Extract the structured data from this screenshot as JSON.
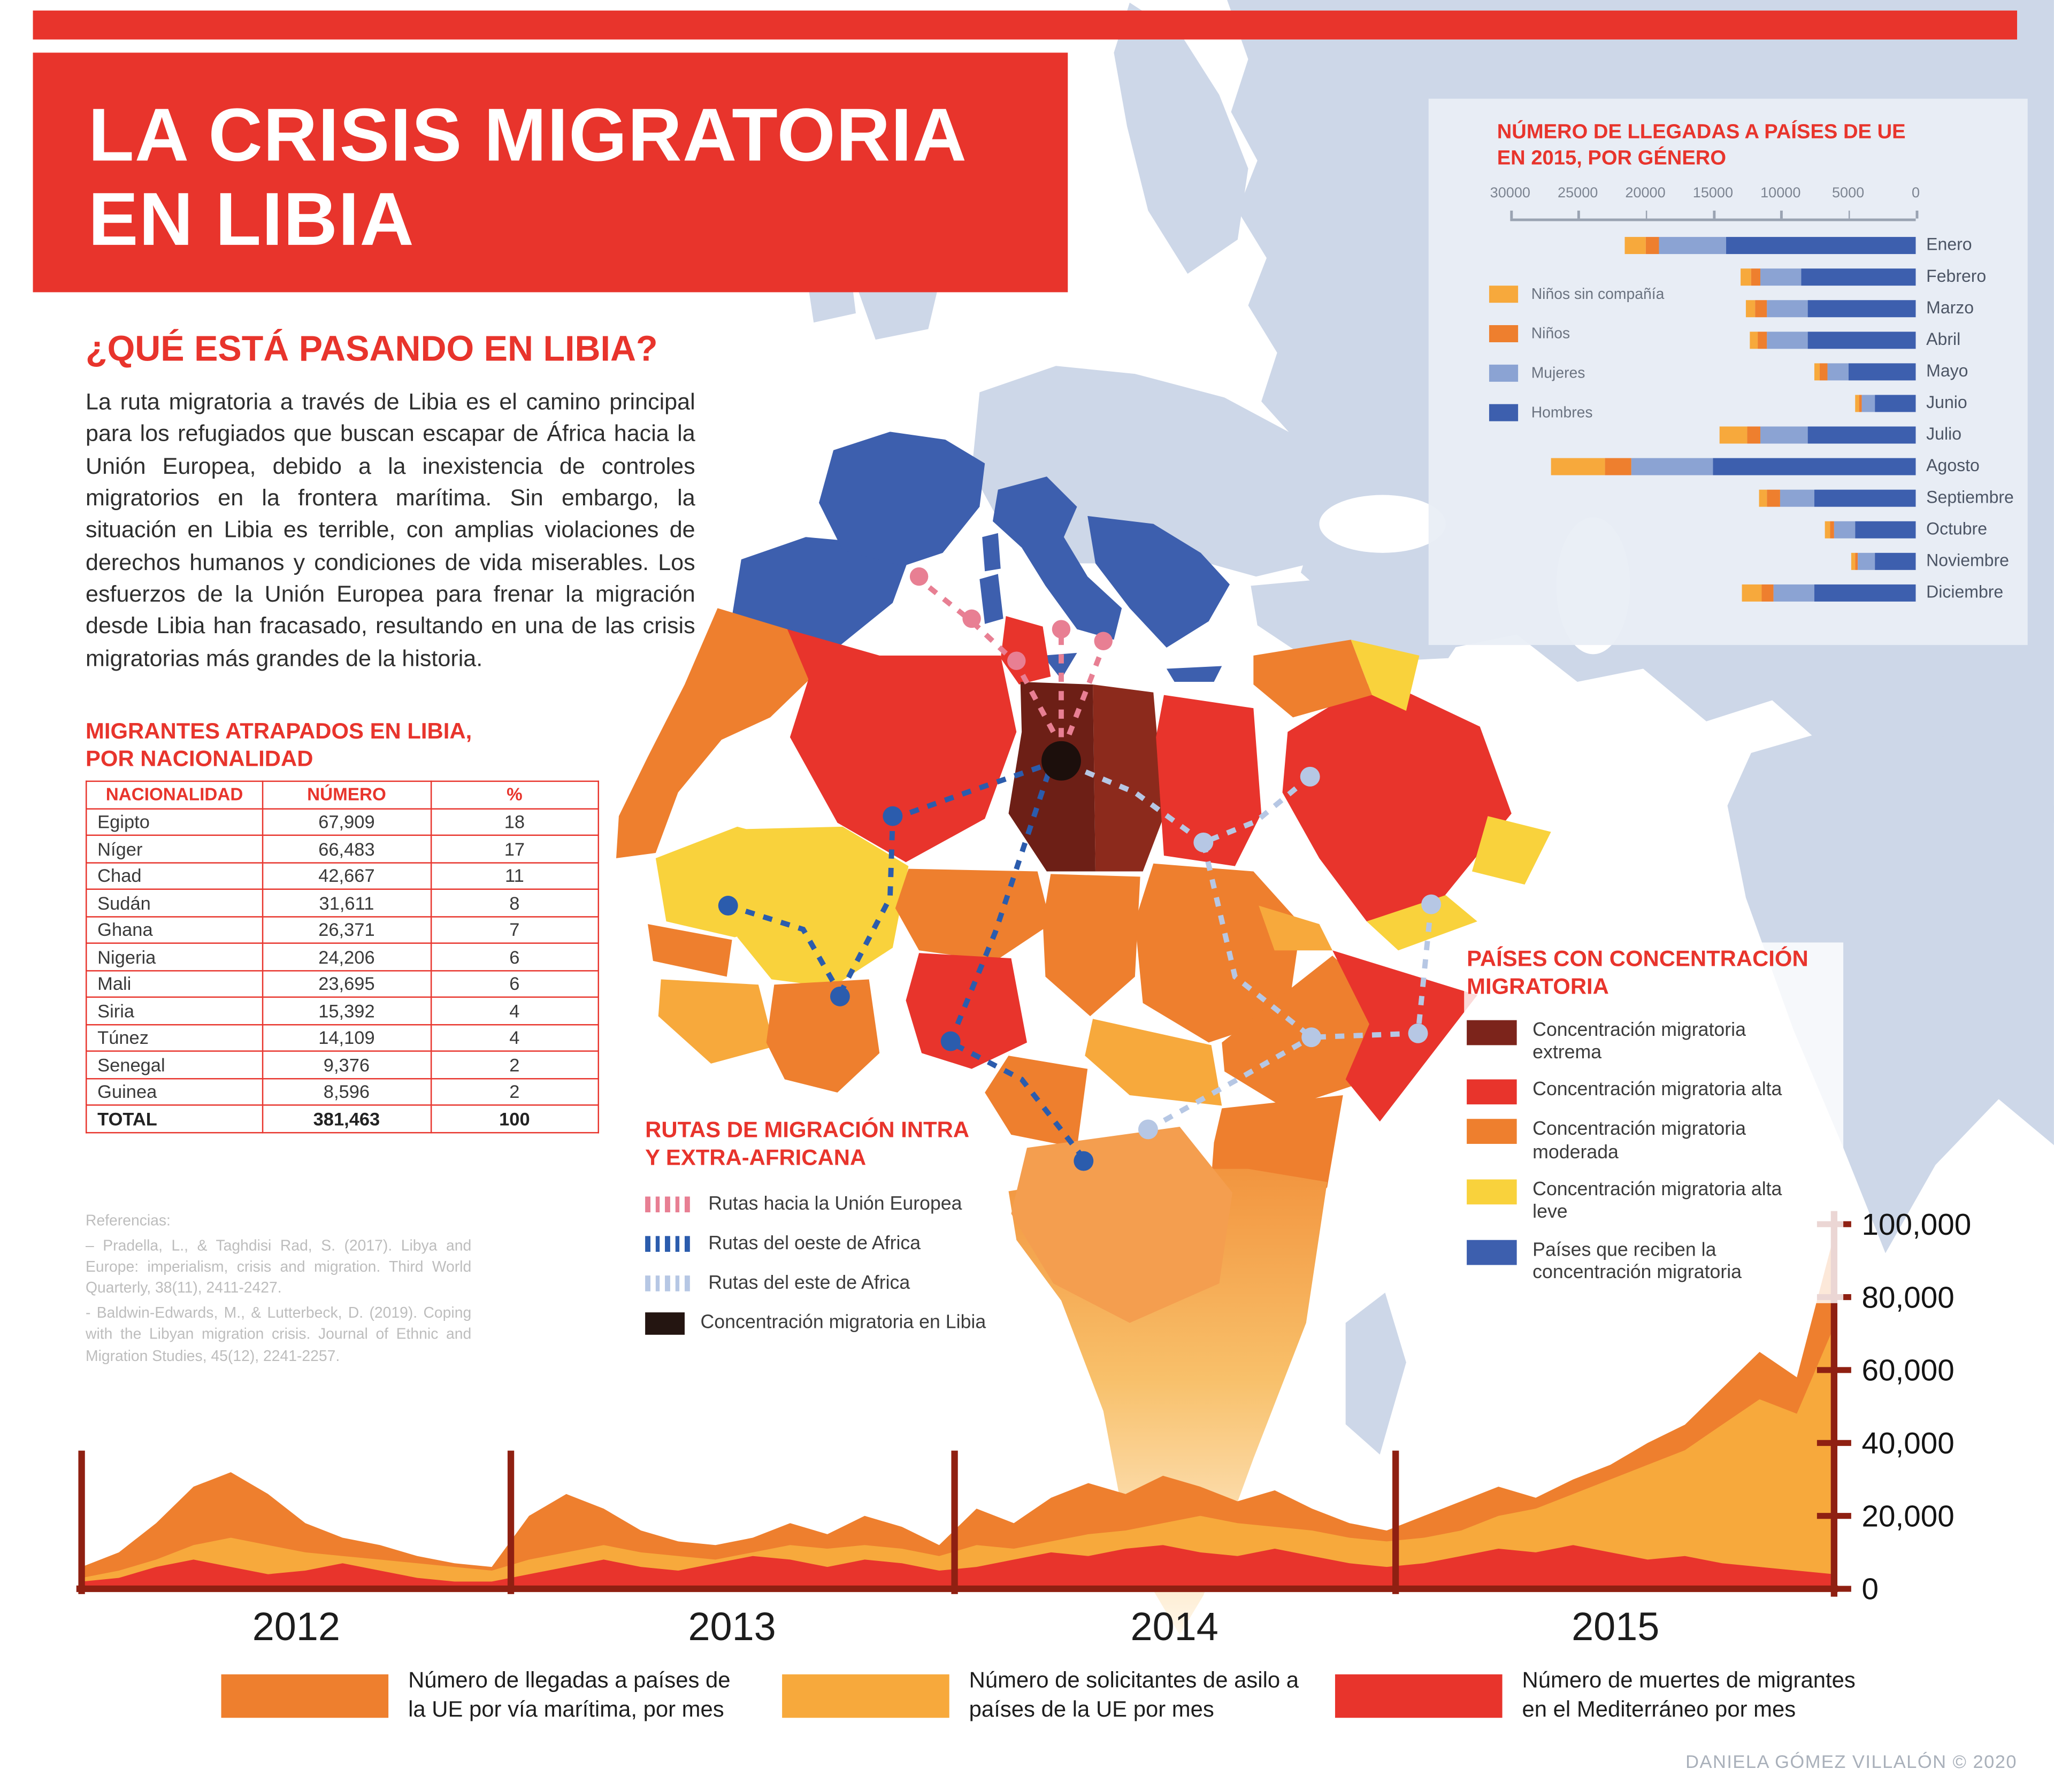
{
  "title": {
    "line1": "LA CRISIS MIGRATORIA",
    "line2": "EN LIBIA"
  },
  "intro": {
    "heading": "¿QUÉ ESTÁ PASANDO EN LIBIA?",
    "body": "La ruta migratoria a través de Libia es el camino principal para los refugiados que buscan escapar de África hacia la Unión Europea, debido a la inexistencia de controles migratorios en la frontera marítima. Sin embargo, la situación en Libia es terrible, con amplias violaciones de derechos humanos y condiciones de vida miserables. Los esfuerzos de la Unión Europea para frenar la migración desde Libia han fracasado, resultando en una de las crisis migratorias más grandes de la historia."
  },
  "nationality_table": {
    "heading": "MIGRANTES ATRAPADOS EN LIBIA, POR NACIONALIDAD",
    "columns": [
      "NACIONALIDAD",
      "NÚMERO",
      "%"
    ],
    "rows": [
      [
        "Egipto",
        "67,909",
        "18"
      ],
      [
        "Níger",
        "66,483",
        "17"
      ],
      [
        "Chad",
        "42,667",
        "11"
      ],
      [
        "Sudán",
        "31,611",
        "8"
      ],
      [
        "Ghana",
        "26,371",
        "7"
      ],
      [
        "Nigeria",
        "24,206",
        "6"
      ],
      [
        "Mali",
        "23,695",
        "6"
      ],
      [
        "Siria",
        "15,392",
        "4"
      ],
      [
        "Túnez",
        "14,109",
        "4"
      ],
      [
        "Senegal",
        "9,376",
        "2"
      ],
      [
        "Guinea",
        "8,596",
        "2"
      ]
    ],
    "total_row": [
      "TOTAL",
      "381,463",
      "100"
    ]
  },
  "references": {
    "heading": "Referencias:",
    "items": [
      "– Pradella, L., & Taghdisi Rad, S. (2017). Libya and Europe: imperialism, crisis and migration. Third World Quarterly, 38(11), 2411-2427.",
      "- Baldwin-Edwards, M., & Lutterbeck, D. (2019). Coping with the Libyan migration crisis. Journal of Ethnic and Migration Studies, 45(12), 2241-2257."
    ]
  },
  "routes_legend": {
    "heading": "RUTAS DE MIGRACIÓN INTRA Y EXTRA-AFRICANA",
    "items": [
      {
        "label": "Rutas hacia la Unión Europea",
        "color": "#e87f93",
        "type": "dashes"
      },
      {
        "label": "Rutas del oeste de Africa",
        "color": "#2b5cad",
        "type": "dashes"
      },
      {
        "label": "Rutas del este de Africa",
        "color": "#b6c7e4",
        "type": "dashes"
      },
      {
        "label": "Concentración migratoria en Libia",
        "color": "#241511",
        "type": "square"
      }
    ]
  },
  "concentration_legend": {
    "heading": "PAÍSES CON CONCENTRACIÓN MIGRATORIA",
    "items": [
      {
        "label": "Concentración migratoria extrema",
        "color": "#7c241b"
      },
      {
        "label": "Concentración migratoria alta",
        "color": "#e8342c"
      },
      {
        "label": "Concentración migratoria moderada",
        "color": "#ee7f2e"
      },
      {
        "label": "Concentración migratoria alta leve",
        "color": "#f9d23c"
      },
      {
        "label": "Países que reciben la concentración migratoria",
        "color": "#3d5fae"
      }
    ]
  },
  "chart_data": [
    {
      "type": "bar",
      "title": "NÚMERO DE LLEGADAS A PAÍSES DE UE EN 2015, POR GÉNERO",
      "orientation": "horizontal-stacked",
      "xlim": [
        0,
        30000
      ],
      "axis_ticks": [
        30000,
        25000,
        20000,
        15000,
        10000,
        5000,
        0
      ],
      "categories": [
        "Enero",
        "Febrero",
        "Marzo",
        "Abril",
        "Mayo",
        "Junio",
        "Julio",
        "Agosto",
        "Septiembre",
        "Octubre",
        "Noviembre",
        "Diciembre"
      ],
      "series": [
        {
          "name": "Niños sin compañía",
          "color": "#f7a93c",
          "values": [
            1500,
            800,
            700,
            600,
            400,
            300,
            2000,
            4000,
            600,
            400,
            300,
            1500
          ]
        },
        {
          "name": "Niños",
          "color": "#ee7f2e",
          "values": [
            1000,
            700,
            900,
            700,
            600,
            200,
            1000,
            2000,
            1000,
            300,
            200,
            900
          ]
        },
        {
          "name": "Mujeres",
          "color": "#8ba3d3",
          "values": [
            5000,
            3000,
            3000,
            3000,
            1500,
            1000,
            3500,
            6000,
            2500,
            1500,
            1300,
            3000
          ]
        },
        {
          "name": "Hombres",
          "color": "#3d5fae",
          "values": [
            14000,
            8500,
            8000,
            8000,
            5000,
            3000,
            8000,
            15000,
            7500,
            4500,
            3000,
            7500
          ]
        }
      ],
      "legend_position": "left",
      "grid": false
    },
    {
      "type": "area",
      "ylim": [
        0,
        100000
      ],
      "y_ticks": [
        100000,
        80000,
        60000,
        40000,
        20000,
        0
      ],
      "y_tick_labels": [
        "100,000",
        "80,000",
        "60,000",
        "40,000",
        "20,000",
        "0"
      ],
      "x_year_labels": [
        "2012",
        "2013",
        "2014",
        "2015"
      ],
      "x_unit": "mes",
      "grid": false,
      "series": [
        {
          "name": "Número de llegadas a países de la UE por vía marítima, por mes",
          "color": "#ee7f2e",
          "values": [
            6000,
            10000,
            18000,
            28000,
            32000,
            26000,
            18000,
            14000,
            12000,
            9000,
            7000,
            6000,
            20000,
            26000,
            22000,
            16000,
            13000,
            12000,
            14000,
            18000,
            15000,
            20000,
            17000,
            12000,
            22000,
            18000,
            25000,
            29000,
            26000,
            31000,
            28000,
            24000,
            27000,
            22000,
            18000,
            16000,
            20000,
            24000,
            28000,
            25000,
            30000,
            34000,
            40000,
            45000,
            55000,
            65000,
            58000,
            97000
          ]
        },
        {
          "name": "Número de solicitantes de asilo a países de la UE por mes",
          "color": "#f7a93c",
          "values": [
            3000,
            5000,
            8000,
            12000,
            14000,
            12000,
            10000,
            9000,
            8000,
            7000,
            6000,
            5000,
            8000,
            10000,
            12000,
            10000,
            9000,
            8000,
            10000,
            12000,
            11000,
            12000,
            11000,
            9000,
            12000,
            11000,
            13000,
            15000,
            16000,
            18000,
            20000,
            18000,
            17000,
            16000,
            14000,
            13000,
            14000,
            16000,
            20000,
            22000,
            26000,
            30000,
            34000,
            38000,
            45000,
            52000,
            48000,
            72000
          ]
        },
        {
          "name": "Número de muertes de migrantes en el Mediterráneo por mes",
          "color": "#e8342c",
          "values": [
            2000,
            3000,
            6000,
            8000,
            6000,
            4000,
            5000,
            7000,
            5000,
            3000,
            2000,
            2000,
            4000,
            6000,
            8000,
            6000,
            5000,
            7000,
            9000,
            8000,
            6000,
            8000,
            7000,
            5000,
            6000,
            8000,
            10000,
            9000,
            11000,
            12000,
            10000,
            9000,
            11000,
            9000,
            7000,
            6000,
            7000,
            9000,
            11000,
            10000,
            12000,
            10000,
            8000,
            9000,
            7000,
            6000,
            5000,
            4000
          ]
        }
      ]
    }
  ],
  "credit": "DANIELA GÓMEZ VILLALÓN © 2020"
}
